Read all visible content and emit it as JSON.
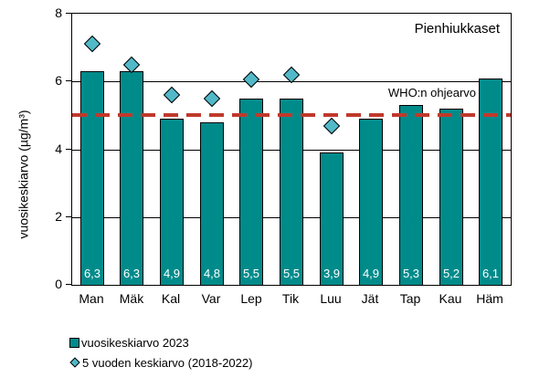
{
  "chart_data": {
    "type": "bar",
    "title": "Pienhiukkaset",
    "xlabel": "",
    "ylabel": "vuosikeskiarvo (µg/m³)",
    "ylim": [
      0,
      8
    ],
    "yticks": [
      0,
      2,
      4,
      6,
      8
    ],
    "grid": "horizontal",
    "legend_position": "bottom-left",
    "categories": [
      "Man",
      "Mäk",
      "Kal",
      "Var",
      "Lep",
      "Tik",
      "Luu",
      "Jät",
      "Tap",
      "Kau",
      "Häm"
    ],
    "series": [
      {
        "name": "vuosikeskiarvo 2023",
        "type": "bar",
        "values": [
          6.3,
          6.3,
          4.9,
          4.8,
          5.5,
          5.5,
          3.9,
          4.9,
          5.3,
          5.2,
          6.1
        ],
        "value_labels": [
          "6,3",
          "6,3",
          "4,9",
          "4,8",
          "5,5",
          "5,5",
          "3,9",
          "4,9",
          "5,3",
          "5,2",
          "6,1"
        ]
      },
      {
        "name": "5 vuoden keskiarvo (2018-2022)",
        "type": "scatter",
        "marker": "diamond",
        "values": [
          7.1,
          6.5,
          5.6,
          5.5,
          6.05,
          6.2,
          4.7,
          null,
          null,
          null,
          null
        ]
      }
    ],
    "reference_line": {
      "label": "WHO:n ohjearvo",
      "value": 5,
      "style": "dashed"
    }
  },
  "colors": {
    "bar_fill": "#008B8B",
    "bar_border": "#000000",
    "diamond_fill": "#52B9C8",
    "diamond_border": "#000000",
    "reference_line": "#C0392B",
    "text": "#000000",
    "background": "#FFFFFF"
  }
}
